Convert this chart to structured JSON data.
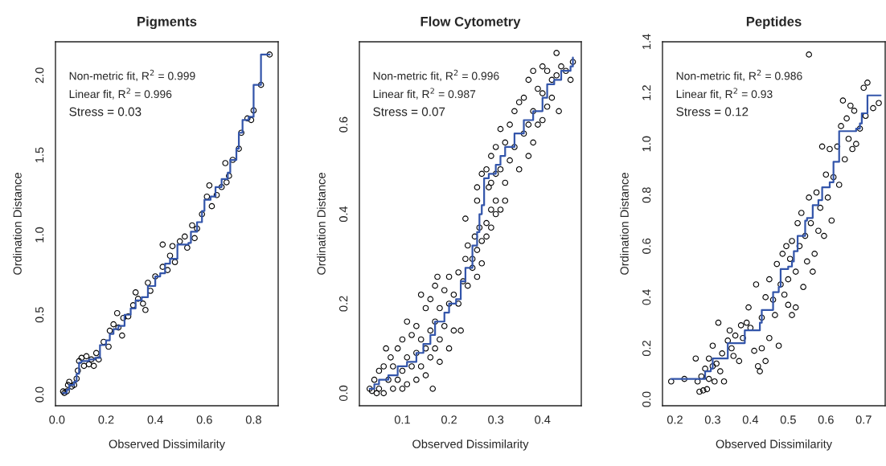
{
  "chart_data": [
    {
      "type": "scatter",
      "title": "Pigments",
      "xlabel": "Observed Dissimilarity",
      "ylabel": "Ordination Distance",
      "xlim": [
        -0.006,
        0.9
      ],
      "ylim": [
        -0.07,
        2.21
      ],
      "xticks": [
        {
          "value": 0,
          "label": "0.0"
        },
        0.2,
        0.4,
        0.6,
        0.8
      ],
      "yticks": [
        {
          "value": 0,
          "label": "0.0"
        },
        0.5,
        {
          "value": 1,
          "label": "1.0"
        },
        1.5,
        {
          "value": 2,
          "label": "2.0"
        }
      ],
      "grid": false,
      "marker": "circle",
      "annotations": [
        "Non-metric fit, R$^{2}$ = 0.999",
        "Linear fit, R$^{2}$ = 0.996",
        "Stress = 0.03"
      ],
      "series": [
        {
          "color": "#000000",
          "x": [
            0.025,
            0.03,
            0.04,
            0.045,
            0.05,
            0.06,
            0.07,
            0.08,
            0.085,
            0.09,
            0.1,
            0.11,
            0.12,
            0.13,
            0.14,
            0.15,
            0.16,
            0.17,
            0.19,
            0.21,
            0.215,
            0.23,
            0.25,
            0.245,
            0.265,
            0.27,
            0.29,
            0.31,
            0.32,
            0.33,
            0.35,
            0.36,
            0.37,
            0.38,
            0.4,
            0.43,
            0.43,
            0.45,
            0.46,
            0.47,
            0.48,
            0.5,
            0.52,
            0.53,
            0.55,
            0.56,
            0.57,
            0.59,
            0.61,
            0.62,
            0.63,
            0.65,
            0.67,
            0.685,
            0.69,
            0.7,
            0.715,
            0.74,
            0.75,
            0.775,
            0.79,
            0.8,
            0.83,
            0.865
          ],
          "values": [
            0.02,
            0.01,
            0.02,
            0.06,
            0.08,
            0.05,
            0.06,
            0.1,
            0.15,
            0.21,
            0.23,
            0.18,
            0.24,
            0.19,
            0.22,
            0.18,
            0.26,
            0.22,
            0.33,
            0.3,
            0.4,
            0.44,
            0.42,
            0.51,
            0.37,
            0.48,
            0.49,
            0.56,
            0.64,
            0.6,
            0.57,
            0.53,
            0.7,
            0.65,
            0.74,
            0.94,
            0.8,
            0.78,
            0.87,
            0.93,
            0.83,
            0.96,
            0.99,
            0.92,
            1.06,
            0.98,
            1.04,
            1.13,
            1.24,
            1.31,
            1.18,
            1.25,
            1.3,
            1.45,
            1.33,
            1.37,
            1.47,
            1.54,
            1.64,
            1.73,
            1.72,
            1.78,
            1.94,
            2.13
          ]
        },
        {
          "type": "step",
          "marker": "none",
          "color": "#3355aa",
          "x": [
            0.025,
            0.04,
            0.05,
            0.07,
            0.08,
            0.09,
            0.1,
            0.13,
            0.155,
            0.175,
            0.2,
            0.215,
            0.23,
            0.25,
            0.275,
            0.3,
            0.32,
            0.345,
            0.37,
            0.4,
            0.42,
            0.44,
            0.46,
            0.49,
            0.535,
            0.545,
            0.57,
            0.59,
            0.6,
            0.625,
            0.645,
            0.67,
            0.695,
            0.705,
            0.73,
            0.74,
            0.755,
            0.78,
            0.8,
            0.83,
            0.865
          ],
          "values": [
            0.01,
            0.03,
            0.06,
            0.08,
            0.13,
            0.2,
            0.21,
            0.22,
            0.23,
            0.31,
            0.34,
            0.38,
            0.41,
            0.43,
            0.5,
            0.54,
            0.59,
            0.61,
            0.68,
            0.74,
            0.76,
            0.82,
            0.85,
            0.94,
            0.95,
            1.02,
            1.08,
            1.15,
            1.22,
            1.24,
            1.3,
            1.35,
            1.39,
            1.47,
            1.54,
            1.64,
            1.72,
            1.74,
            1.94,
            2.13,
            2.13
          ]
        }
      ]
    },
    {
      "type": "scatter",
      "title": "Flow Cytometry",
      "xlabel": "Observed Dissimilarity",
      "ylabel": "Ordination Distance",
      "xlim": [
        0.008,
        0.483
      ],
      "ylim": [
        -0.028,
        0.785
      ],
      "xticks": [
        0.1,
        0.2,
        0.3,
        0.4
      ],
      "yticks": [
        {
          "value": 0,
          "label": "0.0"
        },
        0.2,
        0.4,
        0.6
      ],
      "grid": false,
      "marker": "circle",
      "annotations": [
        "Non-metric fit, R$^{2}$ = 0.996",
        "Linear fit, R$^{2}$ = 0.987",
        "Stress = 0.07"
      ],
      "series": [
        {
          "color": "#000000",
          "x": [
            0.03,
            0.035,
            0.04,
            0.045,
            0.05,
            0.05,
            0.06,
            0.06,
            0.065,
            0.07,
            0.075,
            0.08,
            0.08,
            0.09,
            0.09,
            0.1,
            0.1,
            0.1,
            0.11,
            0.11,
            0.11,
            0.12,
            0.12,
            0.13,
            0.13,
            0.13,
            0.14,
            0.14,
            0.14,
            0.15,
            0.15,
            0.15,
            0.16,
            0.16,
            0.16,
            0.165,
            0.17,
            0.17,
            0.17,
            0.175,
            0.18,
            0.18,
            0.18,
            0.19,
            0.19,
            0.2,
            0.2,
            0.2,
            0.21,
            0.21,
            0.22,
            0.22,
            0.225,
            0.23,
            0.235,
            0.24,
            0.24,
            0.25,
            0.25,
            0.255,
            0.26,
            0.26,
            0.265,
            0.27,
            0.27,
            0.28,
            0.28,
            0.29,
            0.29,
            0.3,
            0.3,
            0.31,
            0.32,
            0.235,
            0.26,
            0.26,
            0.27,
            0.28,
            0.285,
            0.29,
            0.29,
            0.3,
            0.3,
            0.31,
            0.31,
            0.32,
            0.32,
            0.33,
            0.33,
            0.34,
            0.34,
            0.35,
            0.35,
            0.36,
            0.36,
            0.37,
            0.37,
            0.37,
            0.38,
            0.38,
            0.38,
            0.39,
            0.39,
            0.4,
            0.4,
            0.4,
            0.41,
            0.41,
            0.42,
            0.42,
            0.43,
            0.43,
            0.435,
            0.44,
            0.45,
            0.46,
            0.465
          ],
          "values": [
            0.01,
            0.005,
            0.03,
            0.0,
            0.05,
            0.01,
            0.06,
            0.0,
            0.1,
            0.03,
            0.08,
            0.01,
            0.06,
            0.1,
            0.03,
            0.12,
            0.05,
            0.01,
            0.16,
            0.08,
            0.02,
            0.13,
            0.06,
            0.15,
            0.09,
            0.03,
            0.22,
            0.12,
            0.06,
            0.19,
            0.1,
            0.04,
            0.21,
            0.14,
            0.08,
            0.01,
            0.24,
            0.16,
            0.1,
            0.26,
            0.19,
            0.12,
            0.07,
            0.23,
            0.15,
            0.26,
            0.2,
            0.1,
            0.22,
            0.14,
            0.27,
            0.2,
            0.14,
            0.25,
            0.3,
            0.24,
            0.33,
            0.3,
            0.28,
            0.35,
            0.32,
            0.26,
            0.37,
            0.34,
            0.29,
            0.38,
            0.35,
            0.37,
            0.41,
            0.4,
            0.43,
            0.41,
            0.43,
            0.39,
            0.43,
            0.46,
            0.49,
            0.5,
            0.46,
            0.53,
            0.47,
            0.55,
            0.49,
            0.59,
            0.5,
            0.56,
            0.47,
            0.6,
            0.52,
            0.63,
            0.55,
            0.65,
            0.5,
            0.66,
            0.58,
            0.7,
            0.6,
            0.53,
            0.72,
            0.63,
            0.56,
            0.68,
            0.6,
            0.73,
            0.67,
            0.61,
            0.72,
            0.64,
            0.7,
            0.66,
            0.76,
            0.71,
            0.63,
            0.73,
            0.72,
            0.7,
            0.74
          ]
        },
        {
          "type": "step",
          "marker": "none",
          "color": "#3355aa",
          "x": [
            0.03,
            0.04,
            0.05,
            0.07,
            0.09,
            0.11,
            0.13,
            0.145,
            0.16,
            0.17,
            0.19,
            0.2,
            0.215,
            0.225,
            0.235,
            0.25,
            0.26,
            0.265,
            0.27,
            0.275,
            0.285,
            0.3,
            0.31,
            0.32,
            0.34,
            0.36,
            0.38,
            0.4,
            0.41,
            0.425,
            0.44,
            0.46,
            0.465
          ],
          "values": [
            0.01,
            0.02,
            0.03,
            0.04,
            0.06,
            0.07,
            0.09,
            0.11,
            0.13,
            0.16,
            0.18,
            0.2,
            0.21,
            0.25,
            0.28,
            0.33,
            0.36,
            0.4,
            0.42,
            0.48,
            0.49,
            0.51,
            0.53,
            0.55,
            0.58,
            0.61,
            0.63,
            0.66,
            0.69,
            0.7,
            0.72,
            0.73,
            0.75
          ]
        }
      ]
    },
    {
      "type": "scatter",
      "title": "Peptides",
      "xlabel": "Observed Dissimilarity",
      "ylabel": "Ordination Distance",
      "xlim": [
        0.167,
        0.757
      ],
      "ylim": [
        -0.025,
        1.4
      ],
      "xticks": [
        0.2,
        0.3,
        0.4,
        0.5,
        0.6,
        0.7
      ],
      "yticks": [
        {
          "value": 0,
          "label": "0.0"
        },
        0.2,
        0.4,
        0.6,
        0.8,
        {
          "value": 1,
          "label": "1.0"
        },
        1.2,
        1.4
      ],
      "grid": false,
      "marker": "circle",
      "annotations": [
        "Non-metric fit, R$^{2}$ = 0.986",
        "Linear fit, R$^{2}$ = 0.93",
        "Stress = 0.12"
      ],
      "series": [
        {
          "color": "#000000",
          "x": [
            0.19,
            0.225,
            0.255,
            0.26,
            0.265,
            0.27,
            0.275,
            0.285,
            0.28,
            0.29,
            0.29,
            0.3,
            0.3,
            0.305,
            0.31,
            0.315,
            0.32,
            0.325,
            0.33,
            0.34,
            0.345,
            0.35,
            0.355,
            0.36,
            0.37,
            0.375,
            0.38,
            0.39,
            0.395,
            0.4,
            0.41,
            0.415,
            0.42,
            0.425,
            0.43,
            0.43,
            0.44,
            0.44,
            0.45,
            0.45,
            0.46,
            0.465,
            0.47,
            0.475,
            0.48,
            0.485,
            0.49,
            0.495,
            0.5,
            0.5,
            0.505,
            0.51,
            0.51,
            0.52,
            0.52,
            0.525,
            0.53,
            0.535,
            0.54,
            0.545,
            0.55,
            0.555,
            0.555,
            0.56,
            0.565,
            0.57,
            0.575,
            0.58,
            0.585,
            0.59,
            0.595,
            0.6,
            0.605,
            0.61,
            0.615,
            0.62,
            0.63,
            0.635,
            0.64,
            0.645,
            0.65,
            0.655,
            0.66,
            0.665,
            0.67,
            0.675,
            0.68,
            0.69,
            0.7,
            0.705,
            0.71,
            0.725,
            0.74
          ],
          "values": [
            0.07,
            0.08,
            0.16,
            0.07,
            0.03,
            0.09,
            0.035,
            0.04,
            0.12,
            0.08,
            0.16,
            0.21,
            0.13,
            0.07,
            0.14,
            0.3,
            0.11,
            0.18,
            0.07,
            0.23,
            0.27,
            0.2,
            0.17,
            0.25,
            0.15,
            0.29,
            0.24,
            0.3,
            0.36,
            0.28,
            0.19,
            0.45,
            0.13,
            0.11,
            0.32,
            0.2,
            0.4,
            0.15,
            0.24,
            0.47,
            0.39,
            0.33,
            0.53,
            0.21,
            0.45,
            0.57,
            0.41,
            0.6,
            0.47,
            0.37,
            0.55,
            0.62,
            0.33,
            0.5,
            0.36,
            0.69,
            0.6,
            0.73,
            0.44,
            0.64,
            0.54,
            0.79,
            1.35,
            0.69,
            0.5,
            0.57,
            0.81,
            0.66,
            0.75,
            0.99,
            0.64,
            0.88,
            0.79,
            0.98,
            0.7,
            0.87,
            0.99,
            0.84,
            1.07,
            1.17,
            0.94,
            1.1,
            1.02,
            1.15,
            0.98,
            1.13,
            1.0,
            1.06,
            1.22,
            1.11,
            1.24,
            1.14,
            1.16
          ]
        },
        {
          "type": "step",
          "marker": "none",
          "color": "#3355aa",
          "x": [
            0.19,
            0.275,
            0.28,
            0.295,
            0.3,
            0.34,
            0.38,
            0.385,
            0.415,
            0.425,
            0.43,
            0.45,
            0.46,
            0.475,
            0.48,
            0.5,
            0.51,
            0.515,
            0.525,
            0.545,
            0.55,
            0.565,
            0.58,
            0.59,
            0.61,
            0.62,
            0.635,
            0.68,
            0.69,
            0.695,
            0.71,
            0.745
          ],
          "values": [
            0.08,
            0.08,
            0.11,
            0.12,
            0.16,
            0.22,
            0.22,
            0.27,
            0.27,
            0.3,
            0.35,
            0.35,
            0.42,
            0.44,
            0.51,
            0.52,
            0.54,
            0.58,
            0.64,
            0.7,
            0.71,
            0.76,
            0.78,
            0.83,
            0.85,
            0.93,
            1.05,
            1.06,
            1.08,
            1.12,
            1.19,
            1.19
          ]
        }
      ]
    }
  ]
}
